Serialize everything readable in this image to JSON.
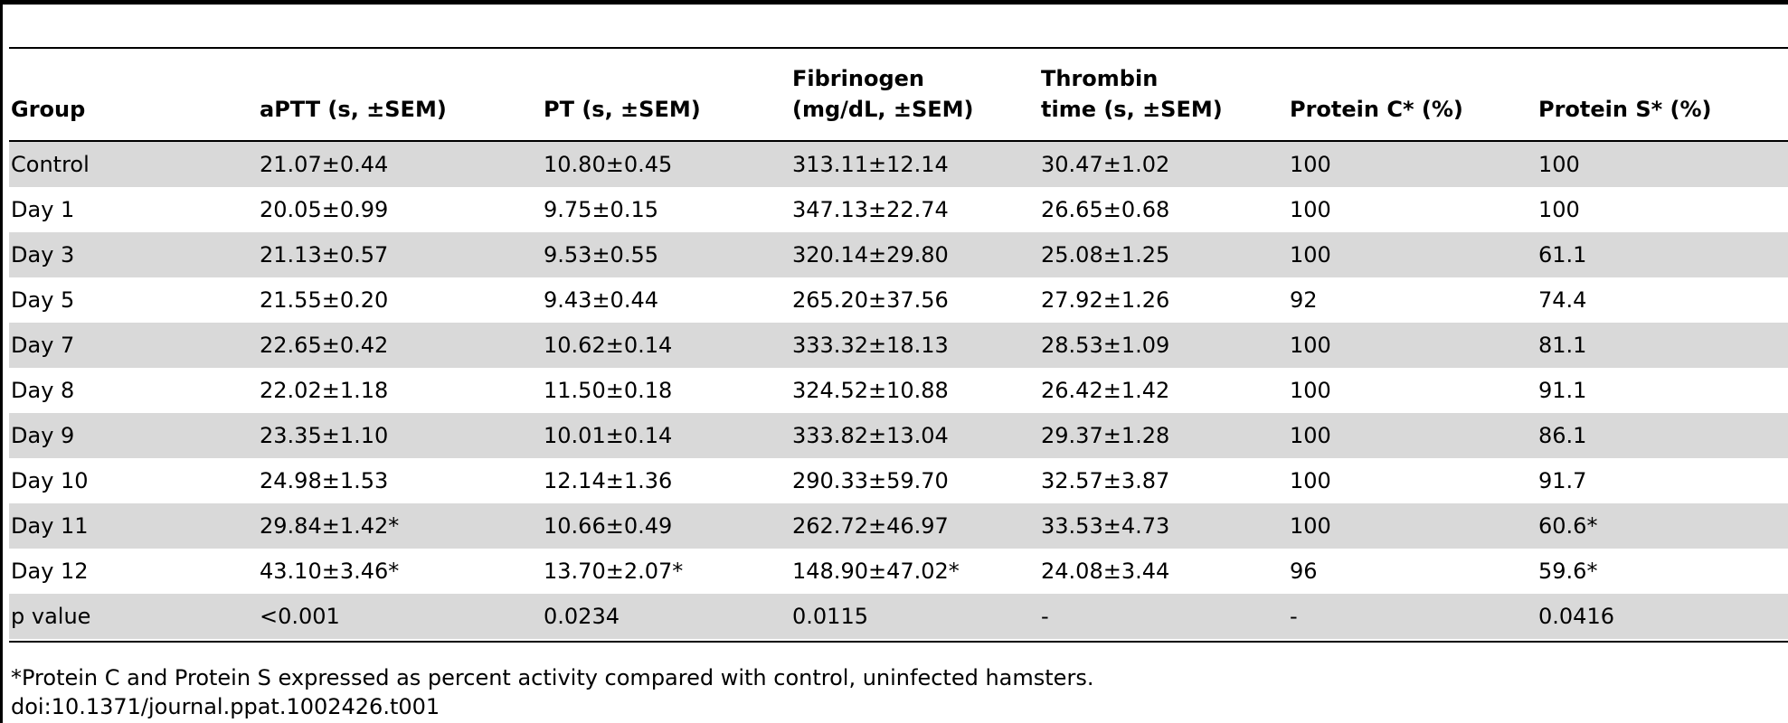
{
  "table": {
    "headers": [
      {
        "line1": "",
        "line2": "Group"
      },
      {
        "line1": "",
        "line2": "aPTT (s, ±SEM)"
      },
      {
        "line1": "",
        "line2": "PT (s, ±SEM)"
      },
      {
        "line1": "Fibrinogen",
        "line2": "(mg/dL, ±SEM)"
      },
      {
        "line1": "Thrombin",
        "line2": "time (s, ±SEM)"
      },
      {
        "line1": "",
        "line2": "Protein C* (%)"
      },
      {
        "line1": "",
        "line2": "Protein S* (%)"
      }
    ],
    "rows": [
      [
        "Control",
        "21.07±0.44",
        "10.80±0.45",
        "313.11±12.14",
        "30.47±1.02",
        "100",
        "100"
      ],
      [
        "Day 1",
        "20.05±0.99",
        "9.75±0.15",
        "347.13±22.74",
        "26.65±0.68",
        "100",
        "100"
      ],
      [
        "Day 3",
        "21.13±0.57",
        "9.53±0.55",
        "320.14±29.80",
        "25.08±1.25",
        "100",
        "61.1"
      ],
      [
        "Day 5",
        "21.55±0.20",
        "9.43±0.44",
        "265.20±37.56",
        "27.92±1.26",
        "92",
        "74.4"
      ],
      [
        "Day 7",
        "22.65±0.42",
        "10.62±0.14",
        "333.32±18.13",
        "28.53±1.09",
        "100",
        "81.1"
      ],
      [
        "Day 8",
        "22.02±1.18",
        "11.50±0.18",
        "324.52±10.88",
        "26.42±1.42",
        "100",
        "91.1"
      ],
      [
        "Day 9",
        "23.35±1.10",
        "10.01±0.14",
        "333.82±13.04",
        "29.37±1.28",
        "100",
        "86.1"
      ],
      [
        "Day 10",
        "24.98±1.53",
        "12.14±1.36",
        "290.33±59.70",
        "32.57±3.87",
        "100",
        "91.7"
      ],
      [
        "Day 11",
        "29.84±1.42*",
        "10.66±0.49",
        "262.72±46.97",
        "33.53±4.73",
        "100",
        "60.6*"
      ],
      [
        "Day 12",
        "43.10±3.46*",
        "13.70±2.07*",
        "148.90±47.02*",
        "24.08±3.44",
        "96",
        "59.6*"
      ],
      [
        "p value",
        "<0.001",
        "0.0234",
        "0.0115",
        "-",
        "-",
        "0.0416"
      ]
    ],
    "shade_color": "#d9d9d9"
  },
  "footnote": "*Protein C and Protein S expressed as percent activity compared with control, uninfected hamsters.",
  "doi": "doi:10.1371/journal.ppat.1002426.t001"
}
